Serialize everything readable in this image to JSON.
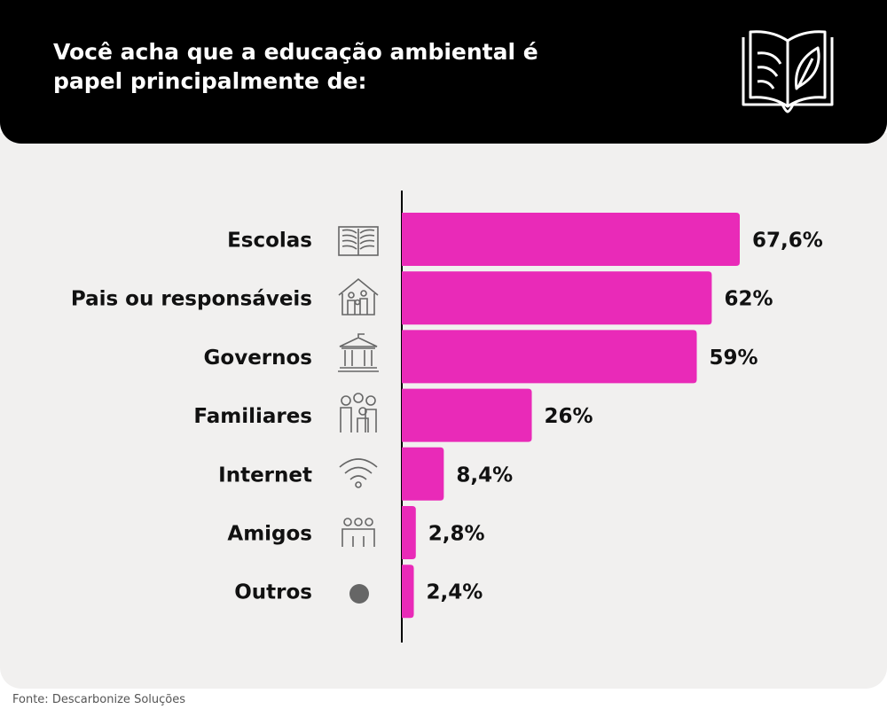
{
  "chart_data": {
    "type": "bar",
    "orientation": "horizontal",
    "title": "Você acha que a educação ambiental é papel principalmente de:",
    "categories": [
      "Escolas",
      "Pais ou responsáveis",
      "Governos",
      "Familiares",
      "Internet",
      "Amigos",
      "Outros"
    ],
    "values": [
      67.6,
      62,
      59,
      26,
      8.4,
      2.8,
      2.4
    ],
    "value_labels": [
      "67,6%",
      "62%",
      "59%",
      "26%",
      "8,4%",
      "2,8%",
      "2,4%"
    ],
    "color": "#e92ab8",
    "source": "Fonte: Descarbonize Soluções"
  }
}
